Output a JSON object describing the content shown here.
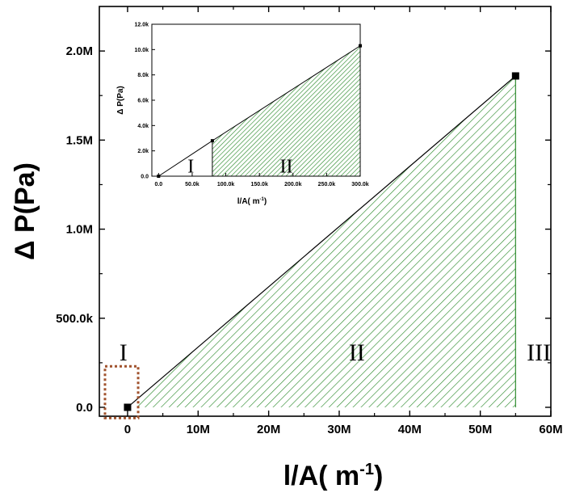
{
  "chart_data": [
    {
      "type": "area",
      "xlabel": "l/A( m",
      "xlabel_sup": "-1",
      "xlabel_close": ")",
      "ylabel": "Δ P(Pa)",
      "xlim": [
        -4000000,
        60000000
      ],
      "ylim": [
        -50000,
        2250000
      ],
      "x_ticks": [
        0,
        10000000,
        20000000,
        30000000,
        40000000,
        50000000,
        60000000
      ],
      "x_tick_labels": [
        "0",
        "10M",
        "20M",
        "30M",
        "40M",
        "50M",
        "60M"
      ],
      "y_ticks": [
        0,
        500000,
        1000000,
        1500000,
        2000000
      ],
      "y_tick_labels": [
        "0.0",
        "500.0k",
        "1.0M",
        "1.5M",
        "2.0M"
      ],
      "series": [
        {
          "x": [
            0,
            55000000
          ],
          "y": [
            0,
            1860000
          ]
        }
      ],
      "markers": [
        {
          "x": 0,
          "y": 0
        },
        {
          "x": 55000000,
          "y": 1860000
        }
      ],
      "hatched_region": {
        "x_from": 1500000,
        "x_to": 55000000,
        "color": "#2e8b2e"
      },
      "regions": [
        {
          "label": "I",
          "x": -600000,
          "y": 300000
        },
        {
          "label": "II",
          "x": 32500000,
          "y": 300000
        },
        {
          "label": "III",
          "x": 58300000,
          "y": 300000
        }
      ],
      "highlight_box": {
        "x0": -3200000,
        "x1": 1500000,
        "y0": -60000,
        "y1": 230000,
        "color": "#a0522d"
      },
      "grid": false
    },
    {
      "type": "area",
      "xlabel": "l/A( m",
      "xlabel_sup": "-1",
      "xlabel_close": ")",
      "ylabel": "Δ P(Pa)",
      "xlim": [
        -10000,
        300000
      ],
      "ylim": [
        0,
        12000
      ],
      "x_ticks": [
        0,
        50000,
        100000,
        150000,
        200000,
        250000,
        300000
      ],
      "x_tick_labels": [
        "0.0",
        "50.0k",
        "100.0k",
        "150.0k",
        "200.0k",
        "250.0k",
        "300.0k"
      ],
      "y_ticks": [
        0,
        2000,
        4000,
        6000,
        8000,
        10000,
        12000
      ],
      "y_tick_labels": [
        "0.0",
        "2.0k",
        "4.0k",
        "6.0k",
        "8.0k",
        "10.0k",
        "12.0k"
      ],
      "series": [
        {
          "x": [
            0,
            80000,
            300000
          ],
          "y": [
            0,
            2800,
            10300
          ]
        }
      ],
      "markers": [
        {
          "x": 0,
          "y": 0
        },
        {
          "x": 80000,
          "y": 2800
        },
        {
          "x": 300000,
          "y": 10300
        }
      ],
      "hatched_region": {
        "x_from": 80000,
        "x_to": 300000,
        "color": "#2e8b2e"
      },
      "regions": [
        {
          "label": "I",
          "x": 48000,
          "y": 300
        },
        {
          "label": "II",
          "x": 190000,
          "y": 300
        }
      ],
      "grid": false
    }
  ]
}
